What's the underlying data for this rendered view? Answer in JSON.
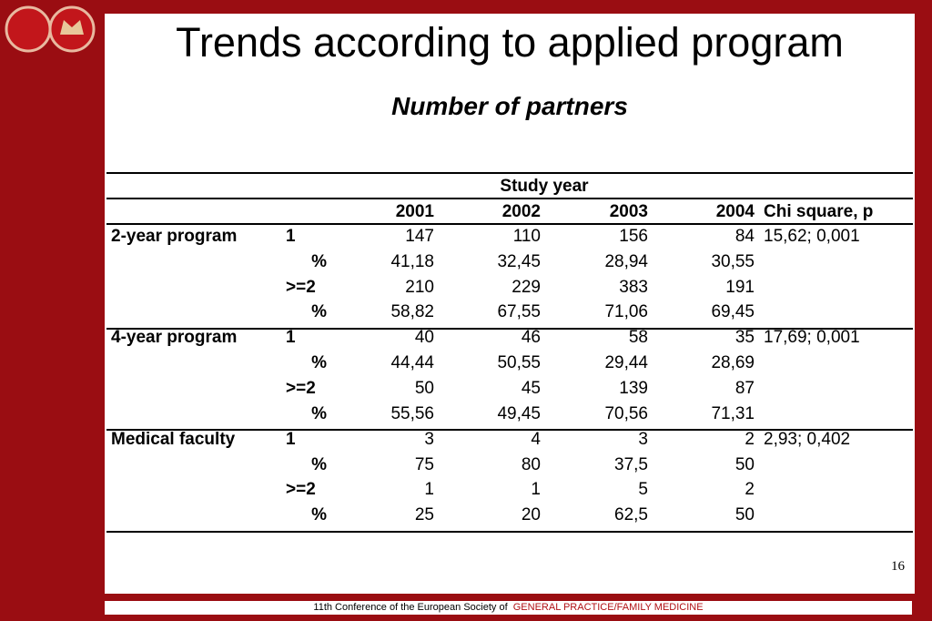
{
  "header": {
    "title": "Trends according to applied program",
    "subtitle": "Number of partners"
  },
  "table": {
    "spanner": "Study year",
    "columns": [
      "2001",
      "2002",
      "2003",
      "2004",
      "Chi square, p"
    ],
    "groups": [
      {
        "name": "2-year program",
        "chi": "15,62; 0,001",
        "rows": [
          {
            "label": "1",
            "values": [
              "147",
              "110",
              "156",
              "84"
            ]
          },
          {
            "label": "%",
            "values": [
              "41,18",
              "32,45",
              "28,94",
              "30,55"
            ]
          },
          {
            "label": ">=2",
            "values": [
              "210",
              "229",
              "383",
              "191"
            ]
          },
          {
            "label": "%",
            "values": [
              "58,82",
              "67,55",
              "71,06",
              "69,45"
            ]
          }
        ]
      },
      {
        "name": "4-year program",
        "chi": "17,69; 0,001",
        "rows": [
          {
            "label": "1",
            "values": [
              "40",
              "46",
              "58",
              "35"
            ]
          },
          {
            "label": "%",
            "values": [
              "44,44",
              "50,55",
              "29,44",
              "28,69"
            ]
          },
          {
            "label": ">=2",
            "values": [
              "50",
              "45",
              "139",
              "87"
            ]
          },
          {
            "label": "%",
            "values": [
              "55,56",
              "49,45",
              "70,56",
              "71,31"
            ]
          }
        ]
      },
      {
        "name": "Medical faculty",
        "chi": "2,93; 0,402",
        "rows": [
          {
            "label": "1",
            "values": [
              "3",
              "4",
              "3",
              "2"
            ]
          },
          {
            "label": "%",
            "values": [
              "75",
              "80",
              "37,5",
              "50"
            ]
          },
          {
            "label": ">=2",
            "values": [
              "1",
              "1",
              "5",
              "2"
            ]
          },
          {
            "label": "%",
            "values": [
              "25",
              "20",
              "62,5",
              "50"
            ]
          }
        ]
      }
    ]
  },
  "page_number": "16",
  "footer": {
    "text": "11th Conference of the European Society of",
    "highlight": "GENERAL PRACTICE/FAMILY MEDICINE"
  }
}
